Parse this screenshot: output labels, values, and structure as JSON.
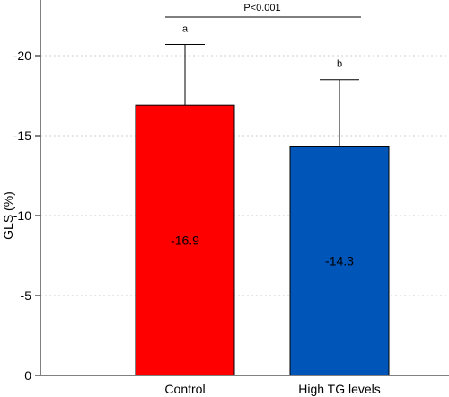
{
  "chart_data": {
    "type": "bar",
    "ylabel": "GLS (%)",
    "categories": [
      "Control",
      "High TG levels"
    ],
    "values": [
      -16.9,
      -14.3
    ],
    "value_labels": [
      "-16.9",
      "-14.3"
    ],
    "error_upper": [
      -20.7,
      -18.5
    ],
    "letters": [
      "a",
      "b"
    ],
    "significance": "P<0.001",
    "colors": [
      "#ff0000",
      "#0055b8"
    ],
    "ylim": [
      0,
      -25
    ],
    "yticks": [
      0,
      -5,
      -10,
      -15,
      -20
    ],
    "ytick_labels": [
      "0",
      "-5",
      "-10",
      "-15",
      "-20"
    ],
    "grid": true
  }
}
